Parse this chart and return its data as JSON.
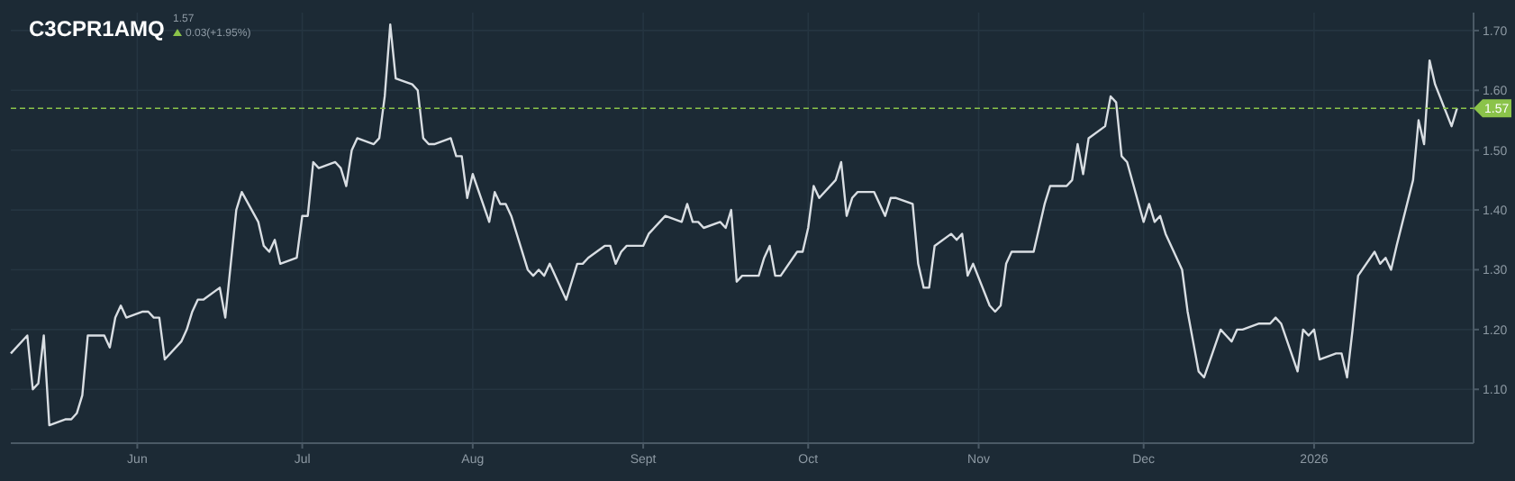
{
  "chart_data": {
    "type": "line",
    "title": "C3CPR1AMQ",
    "annotations": [
      "1.57",
      "0.03(+1.95%)"
    ],
    "x": [
      "2025-05-09",
      "2025-05-12",
      "2025-05-13",
      "2025-05-14",
      "2025-05-15",
      "2025-05-16",
      "2025-05-19",
      "2025-05-20",
      "2025-05-21",
      "2025-05-22",
      "2025-05-23",
      "2025-05-26",
      "2025-05-27",
      "2025-05-28",
      "2025-05-29",
      "2025-05-30",
      "2025-06-02",
      "2025-06-03",
      "2025-06-04",
      "2025-06-05",
      "2025-06-06",
      "2025-06-09",
      "2025-06-10",
      "2025-06-11",
      "2025-06-12",
      "2025-06-13",
      "2025-06-16",
      "2025-06-17",
      "2025-06-18",
      "2025-06-19",
      "2025-06-20",
      "2025-06-23",
      "2025-06-24",
      "2025-06-25",
      "2025-06-26",
      "2025-06-27",
      "2025-06-30",
      "2025-07-01",
      "2025-07-02",
      "2025-07-03",
      "2025-07-04",
      "2025-07-07",
      "2025-07-08",
      "2025-07-09",
      "2025-07-10",
      "2025-07-11",
      "2025-07-14",
      "2025-07-15",
      "2025-07-16",
      "2025-07-17",
      "2025-07-18",
      "2025-07-21",
      "2025-07-22",
      "2025-07-23",
      "2025-07-24",
      "2025-07-25",
      "2025-07-28",
      "2025-07-29",
      "2025-07-30",
      "2025-07-31",
      "2025-08-01",
      "2025-08-04",
      "2025-08-05",
      "2025-08-06",
      "2025-08-07",
      "2025-08-08",
      "2025-08-11",
      "2025-08-12",
      "2025-08-13",
      "2025-08-14",
      "2025-08-15",
      "2025-08-18",
      "2025-08-19",
      "2025-08-20",
      "2025-08-21",
      "2025-08-22",
      "2025-08-25",
      "2025-08-26",
      "2025-08-27",
      "2025-08-28",
      "2025-08-29",
      "2025-09-01",
      "2025-09-02",
      "2025-09-03",
      "2025-09-04",
      "2025-09-05",
      "2025-09-08",
      "2025-09-09",
      "2025-09-10",
      "2025-09-11",
      "2025-09-12",
      "2025-09-15",
      "2025-09-16",
      "2025-09-17",
      "2025-09-18",
      "2025-09-19",
      "2025-09-22",
      "2025-09-23",
      "2025-09-24",
      "2025-09-25",
      "2025-09-26",
      "2025-09-29",
      "2025-09-30",
      "2025-10-01",
      "2025-10-02",
      "2025-10-03",
      "2025-10-06",
      "2025-10-07",
      "2025-10-08",
      "2025-10-09",
      "2025-10-10",
      "2025-10-13",
      "2025-10-14",
      "2025-10-15",
      "2025-10-16",
      "2025-10-17",
      "2025-10-20",
      "2025-10-21",
      "2025-10-22",
      "2025-10-23",
      "2025-10-24",
      "2025-10-27",
      "2025-10-28",
      "2025-10-29",
      "2025-10-30",
      "2025-10-31",
      "2025-11-03",
      "2025-11-04",
      "2025-11-05",
      "2025-11-06",
      "2025-11-07",
      "2025-11-10",
      "2025-11-11",
      "2025-11-12",
      "2025-11-13",
      "2025-11-14",
      "2025-11-17",
      "2025-11-18",
      "2025-11-19",
      "2025-11-20",
      "2025-11-21",
      "2025-11-24",
      "2025-11-25",
      "2025-11-26",
      "2025-11-27",
      "2025-11-28",
      "2025-12-01",
      "2025-12-02",
      "2025-12-03",
      "2025-12-04",
      "2025-12-05",
      "2025-12-08",
      "2025-12-09",
      "2025-12-10",
      "2025-12-11",
      "2025-12-12",
      "2025-12-15",
      "2025-12-16",
      "2025-12-17",
      "2025-12-18",
      "2025-12-19",
      "2025-12-22",
      "2025-12-23",
      "2025-12-24",
      "2025-12-25",
      "2025-12-26",
      "2025-12-29",
      "2025-12-30",
      "2025-12-31",
      "2026-01-01",
      "2026-01-02",
      "2026-01-05",
      "2026-01-06",
      "2026-01-07",
      "2026-01-08",
      "2026-01-09",
      "2026-01-12",
      "2026-01-13",
      "2026-01-14",
      "2026-01-15",
      "2026-01-16",
      "2026-01-19",
      "2026-01-20",
      "2026-01-21",
      "2026-01-22",
      "2026-01-23",
      "2026-01-26",
      "2026-01-27"
    ],
    "series": [
      {
        "color": "#d9dee3",
        "values": [
          1.16,
          1.19,
          1.1,
          1.11,
          1.19,
          1.04,
          1.05,
          1.05,
          1.06,
          1.09,
          1.19,
          1.19,
          1.17,
          1.22,
          1.24,
          1.22,
          1.23,
          1.23,
          1.22,
          1.22,
          1.15,
          1.18,
          1.2,
          1.23,
          1.25,
          1.25,
          1.27,
          1.22,
          1.31,
          1.4,
          1.43,
          1.38,
          1.34,
          1.33,
          1.35,
          1.31,
          1.32,
          1.39,
          1.39,
          1.48,
          1.47,
          1.48,
          1.47,
          1.44,
          1.5,
          1.52,
          1.51,
          1.52,
          1.59,
          1.71,
          1.62,
          1.61,
          1.6,
          1.52,
          1.51,
          1.51,
          1.52,
          1.49,
          1.49,
          1.42,
          1.46,
          1.38,
          1.43,
          1.41,
          1.41,
          1.39,
          1.3,
          1.29,
          1.3,
          1.29,
          1.31,
          1.25,
          1.28,
          1.31,
          1.31,
          1.32,
          1.34,
          1.34,
          1.31,
          1.33,
          1.34,
          1.34,
          1.36,
          1.37,
          1.38,
          1.39,
          1.38,
          1.41,
          1.38,
          1.38,
          1.37,
          1.38,
          1.37,
          1.4,
          1.28,
          1.29,
          1.29,
          1.32,
          1.34,
          1.29,
          1.29,
          1.33,
          1.33,
          1.37,
          1.44,
          1.42,
          1.45,
          1.48,
          1.39,
          1.42,
          1.43,
          1.43,
          1.41,
          1.39,
          1.42,
          1.42,
          1.41,
          1.31,
          1.27,
          1.27,
          1.34,
          1.36,
          1.35,
          1.36,
          1.29,
          1.31,
          1.24,
          1.23,
          1.24,
          1.31,
          1.33,
          1.33,
          1.33,
          1.37,
          1.41,
          1.44,
          1.44,
          1.45,
          1.51,
          1.46,
          1.52,
          1.54,
          1.59,
          1.58,
          1.49,
          1.48,
          1.38,
          1.41,
          1.38,
          1.39,
          1.36,
          1.3,
          1.23,
          1.18,
          1.13,
          1.12,
          1.2,
          1.19,
          1.18,
          1.2,
          1.2,
          1.21,
          1.21,
          1.21,
          1.22,
          1.21,
          1.13,
          1.2,
          1.19,
          1.2,
          1.15,
          1.16,
          1.16,
          1.12,
          1.2,
          1.29,
          1.33,
          1.31,
          1.32,
          1.3,
          1.34,
          1.45,
          1.55,
          1.51,
          1.65,
          1.61,
          1.54,
          1.57
        ]
      }
    ],
    "xlim": [
      "2025-05-09",
      "2026-01-30"
    ],
    "xticks": [
      {
        "value": "2025-06-01",
        "label": "Jun"
      },
      {
        "value": "2025-07-01",
        "label": "Jul"
      },
      {
        "value": "2025-08-01",
        "label": "Aug"
      },
      {
        "value": "2025-09-01",
        "label": "Sept"
      },
      {
        "value": "2025-10-01",
        "label": "Oct"
      },
      {
        "value": "2025-11-01",
        "label": "Nov"
      },
      {
        "value": "2025-12-01",
        "label": "Dec"
      },
      {
        "value": "2026-01-01",
        "label": "2026"
      }
    ],
    "ylim": [
      1.01,
      1.73
    ],
    "yticks": [
      {
        "value": 1.1,
        "label": "1.10"
      },
      {
        "value": 1.2,
        "label": "1.20"
      },
      {
        "value": 1.3,
        "label": "1.30"
      },
      {
        "value": 1.4,
        "label": "1.40"
      },
      {
        "value": 1.5,
        "label": "1.50"
      },
      {
        "value": 1.6,
        "label": "1.60"
      },
      {
        "value": 1.7,
        "label": "1.70"
      }
    ],
    "ref_lines": [
      {
        "axis": "y",
        "value": 1.57,
        "label": "1.57",
        "color": "#8bc34a",
        "line_style": "dashed"
      }
    ],
    "grid": true,
    "marker": "none",
    "line_style": "solid"
  }
}
